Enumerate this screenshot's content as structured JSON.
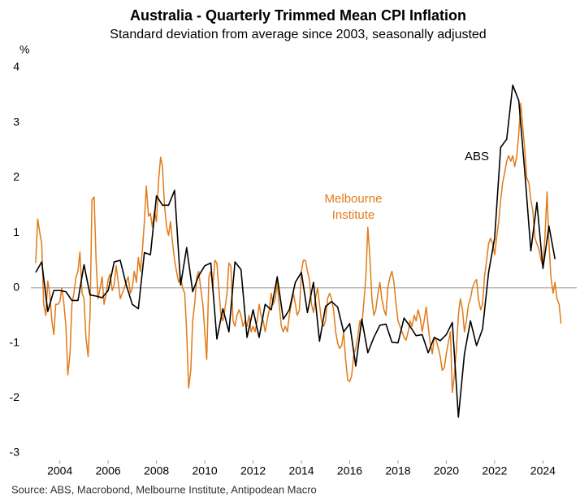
{
  "chart_data": {
    "type": "line",
    "title": "Australia - Quarterly Trimmed Mean CPI Inflation",
    "subtitle": "Standard deviation from average since 2003, seasonally adjusted",
    "y_label": "%",
    "source": "Source: ABS, Macrobond, Melbourne Institute, Antipodean Macro",
    "xlim": [
      2002.8,
      2025.4
    ],
    "xticks": [
      2004,
      2006,
      2008,
      2010,
      2012,
      2014,
      2016,
      2018,
      2020,
      2022,
      2024
    ],
    "ylim": [
      -3.3,
      4.2
    ],
    "yticks": [
      -3,
      -2,
      -1,
      0,
      1,
      2,
      3,
      4
    ],
    "zero_line": true,
    "series": [
      {
        "name": "ABS",
        "color": "#000000",
        "x": [
          2003.0,
          2003.25,
          2003.5,
          2003.75,
          2004.0,
          2004.25,
          2004.5,
          2004.75,
          2005.0,
          2005.25,
          2005.5,
          2005.75,
          2006.0,
          2006.25,
          2006.5,
          2006.75,
          2007.0,
          2007.25,
          2007.5,
          2007.75,
          2008.0,
          2008.25,
          2008.5,
          2008.75,
          2009.0,
          2009.25,
          2009.5,
          2009.75,
          2010.0,
          2010.25,
          2010.5,
          2010.75,
          2011.0,
          2011.25,
          2011.5,
          2011.75,
          2012.0,
          2012.25,
          2012.5,
          2012.75,
          2013.0,
          2013.25,
          2013.5,
          2013.75,
          2014.0,
          2014.25,
          2014.5,
          2014.75,
          2015.0,
          2015.25,
          2015.5,
          2015.75,
          2016.0,
          2016.25,
          2016.5,
          2016.75,
          2017.0,
          2017.25,
          2017.5,
          2017.75,
          2018.0,
          2018.25,
          2018.5,
          2018.75,
          2019.0,
          2019.25,
          2019.5,
          2019.75,
          2020.0,
          2020.25,
          2020.5,
          2020.75,
          2021.0,
          2021.25,
          2021.5,
          2021.75,
          2022.0,
          2022.25,
          2022.5,
          2022.75,
          2023.0,
          2023.25,
          2023.5,
          2023.75,
          2024.0,
          2024.25,
          2024.5
        ],
        "values": [
          0.28,
          0.47,
          -0.43,
          -0.05,
          -0.05,
          -0.07,
          -0.23,
          -0.23,
          0.42,
          -0.13,
          -0.15,
          -0.18,
          -0.05,
          0.47,
          0.5,
          0.05,
          -0.3,
          -0.38,
          0.64,
          0.6,
          1.67,
          1.5,
          1.5,
          1.77,
          0.05,
          0.73,
          -0.07,
          0.22,
          0.4,
          0.45,
          -0.93,
          -0.38,
          -0.8,
          0.47,
          0.33,
          -0.9,
          -0.4,
          -0.9,
          -0.3,
          -0.4,
          0.2,
          -0.57,
          -0.4,
          0.1,
          0.28,
          -0.45,
          0.1,
          -0.97,
          -0.34,
          -0.25,
          -0.35,
          -0.8,
          -0.65,
          -1.42,
          -0.57,
          -1.18,
          -0.9,
          -0.68,
          -0.66,
          -0.99,
          -1.0,
          -0.55,
          -0.7,
          -0.87,
          -0.85,
          -1.18,
          -0.9,
          -0.96,
          -0.85,
          -0.63,
          -2.35,
          -1.2,
          -0.6,
          -1.05,
          -0.75,
          0.28,
          0.9,
          2.55,
          2.7,
          3.68,
          3.4,
          2.1,
          0.67,
          1.55,
          0.35,
          1.12,
          0.52
        ]
      },
      {
        "name": "Melbourne Institute",
        "color": "#E07B17",
        "x": [
          2003.0,
          2003.08,
          2003.17,
          2003.25,
          2003.33,
          2003.42,
          2003.5,
          2003.58,
          2003.67,
          2003.75,
          2003.83,
          2003.92,
          2004.0,
          2004.08,
          2004.17,
          2004.25,
          2004.33,
          2004.42,
          2004.5,
          2004.58,
          2004.67,
          2004.75,
          2004.83,
          2004.92,
          2005.0,
          2005.08,
          2005.17,
          2005.25,
          2005.33,
          2005.42,
          2005.5,
          2005.58,
          2005.67,
          2005.75,
          2005.83,
          2005.92,
          2006.0,
          2006.08,
          2006.17,
          2006.25,
          2006.33,
          2006.42,
          2006.5,
          2006.58,
          2006.67,
          2006.75,
          2006.83,
          2006.92,
          2007.0,
          2007.08,
          2007.17,
          2007.25,
          2007.33,
          2007.42,
          2007.5,
          2007.58,
          2007.67,
          2007.75,
          2007.83,
          2007.92,
          2008.0,
          2008.08,
          2008.17,
          2008.25,
          2008.33,
          2008.42,
          2008.5,
          2008.58,
          2008.67,
          2008.75,
          2008.83,
          2008.92,
          2009.0,
          2009.08,
          2009.17,
          2009.25,
          2009.33,
          2009.42,
          2009.5,
          2009.58,
          2009.67,
          2009.75,
          2009.83,
          2009.92,
          2010.0,
          2010.08,
          2010.17,
          2010.25,
          2010.33,
          2010.42,
          2010.5,
          2010.58,
          2010.67,
          2010.75,
          2010.83,
          2010.92,
          2011.0,
          2011.08,
          2011.17,
          2011.25,
          2011.33,
          2011.42,
          2011.5,
          2011.58,
          2011.67,
          2011.75,
          2011.83,
          2011.92,
          2012.0,
          2012.08,
          2012.17,
          2012.25,
          2012.33,
          2012.42,
          2012.5,
          2012.58,
          2012.67,
          2012.75,
          2012.83,
          2012.92,
          2013.0,
          2013.08,
          2013.17,
          2013.25,
          2013.33,
          2013.42,
          2013.5,
          2013.58,
          2013.67,
          2013.75,
          2013.83,
          2013.92,
          2014.0,
          2014.08,
          2014.17,
          2014.25,
          2014.33,
          2014.42,
          2014.5,
          2014.58,
          2014.67,
          2014.75,
          2014.83,
          2014.92,
          2015.0,
          2015.08,
          2015.17,
          2015.25,
          2015.33,
          2015.42,
          2015.5,
          2015.58,
          2015.67,
          2015.75,
          2015.83,
          2015.92,
          2016.0,
          2016.08,
          2016.17,
          2016.25,
          2016.33,
          2016.42,
          2016.5,
          2016.58,
          2016.67,
          2016.75,
          2016.83,
          2016.92,
          2017.0,
          2017.08,
          2017.17,
          2017.25,
          2017.33,
          2017.42,
          2017.5,
          2017.58,
          2017.67,
          2017.75,
          2017.83,
          2017.92,
          2018.0,
          2018.08,
          2018.17,
          2018.25,
          2018.33,
          2018.42,
          2018.5,
          2018.58,
          2018.67,
          2018.75,
          2018.83,
          2018.92,
          2019.0,
          2019.08,
          2019.17,
          2019.25,
          2019.33,
          2019.42,
          2019.5,
          2019.58,
          2019.67,
          2019.75,
          2019.83,
          2019.92,
          2020.0,
          2020.08,
          2020.17,
          2020.25,
          2020.33,
          2020.42,
          2020.5,
          2020.58,
          2020.67,
          2020.75,
          2020.83,
          2020.92,
          2021.0,
          2021.08,
          2021.17,
          2021.25,
          2021.33,
          2021.42,
          2021.5,
          2021.58,
          2021.67,
          2021.75,
          2021.83,
          2021.92,
          2022.0,
          2022.08,
          2022.17,
          2022.25,
          2022.33,
          2022.42,
          2022.5,
          2022.58,
          2022.67,
          2022.75,
          2022.83,
          2022.92,
          2023.0,
          2023.08,
          2023.17,
          2023.25,
          2023.33,
          2023.42,
          2023.5,
          2023.58,
          2023.67,
          2023.75,
          2023.83,
          2023.92,
          2024.0,
          2024.08,
          2024.17,
          2024.25,
          2024.33,
          2024.42,
          2024.5,
          2024.58,
          2024.67,
          2024.75
        ],
        "values": [
          0.45,
          1.25,
          1.0,
          0.8,
          -0.3,
          -0.5,
          0.12,
          -0.1,
          -0.6,
          -0.85,
          -0.3,
          -0.3,
          -0.25,
          0.0,
          -0.3,
          -0.7,
          -1.58,
          -1.2,
          -0.3,
          -0.1,
          0.2,
          0.3,
          0.65,
          -0.1,
          -0.2,
          -0.9,
          -1.25,
          -0.5,
          1.6,
          1.65,
          0.5,
          -0.2,
          0.0,
          0.2,
          -0.3,
          -0.1,
          0.15,
          0.25,
          -0.05,
          0.05,
          0.4,
          0.1,
          -0.2,
          -0.1,
          0.0,
          0.1,
          0.2,
          -0.1,
          0.0,
          0.3,
          0.1,
          0.55,
          0.3,
          0.7,
          1.2,
          1.85,
          1.3,
          1.35,
          1.1,
          1.4,
          1.2,
          1.9,
          2.37,
          2.2,
          1.5,
          1.1,
          0.95,
          1.2,
          0.8,
          0.5,
          0.3,
          0.1,
          0.2,
          0.0,
          -0.1,
          -0.8,
          -1.82,
          -1.5,
          -0.6,
          -0.3,
          0.2,
          0.3,
          0.0,
          -0.3,
          -0.8,
          -1.3,
          0.2,
          0.3,
          0.0,
          0.5,
          0.45,
          0.0,
          -0.5,
          -0.6,
          -0.4,
          -0.1,
          0.45,
          0.4,
          -0.6,
          -0.7,
          -0.5,
          -0.4,
          -0.5,
          -0.7,
          -0.6,
          -0.7,
          -0.5,
          -0.8,
          -0.7,
          -0.8,
          -0.6,
          -0.3,
          -0.5,
          -0.6,
          -0.8,
          -0.6,
          -0.4,
          -0.1,
          -0.3,
          -0.2,
          0.1,
          -0.3,
          -0.7,
          -0.8,
          -0.7,
          -0.8,
          -0.5,
          -0.3,
          -0.1,
          -0.3,
          -0.5,
          -0.4,
          0.3,
          0.5,
          0.5,
          0.3,
          0.15,
          -0.3,
          -0.45,
          -0.2,
          0.0,
          -0.3,
          -0.6,
          -0.7,
          -0.6,
          -0.2,
          -0.1,
          -0.2,
          -0.4,
          -0.8,
          -1.0,
          -1.1,
          -1.05,
          -0.8,
          -1.3,
          -1.68,
          -1.7,
          -1.6,
          -1.2,
          -1.1,
          -0.9,
          -0.6,
          -0.7,
          -0.3,
          0.2,
          1.1,
          0.6,
          -0.2,
          -0.5,
          -0.4,
          -0.1,
          0.1,
          -0.2,
          -0.4,
          -0.5,
          0.0,
          0.2,
          0.3,
          0.1,
          -0.3,
          -0.6,
          -0.7,
          -0.8,
          -0.9,
          -0.95,
          -0.8,
          -0.6,
          -0.7,
          -0.5,
          -0.6,
          -0.4,
          -0.55,
          -0.8,
          -0.6,
          -0.35,
          -0.7,
          -1.0,
          -1.2,
          -0.9,
          -0.95,
          -1.1,
          -1.25,
          -1.5,
          -1.45,
          -1.2,
          -1.0,
          -0.8,
          -1.9,
          -1.6,
          -1.1,
          -0.5,
          -0.2,
          -0.4,
          -0.8,
          -0.6,
          -0.3,
          -0.2,
          0.0,
          0.1,
          0.15,
          -0.2,
          -0.4,
          -0.3,
          0.2,
          0.5,
          0.8,
          0.9,
          0.8,
          0.6,
          0.9,
          1.2,
          1.6,
          1.9,
          2.1,
          2.3,
          2.4,
          2.3,
          2.4,
          2.2,
          2.4,
          2.8,
          3.35,
          2.9,
          2.5,
          2.0,
          1.9,
          1.6,
          1.4,
          0.9,
          0.8,
          0.7,
          0.5,
          0.4,
          0.9,
          1.74,
          0.8,
          0.2,
          -0.1,
          0.1,
          -0.2,
          -0.3,
          -0.65
        ]
      }
    ]
  }
}
